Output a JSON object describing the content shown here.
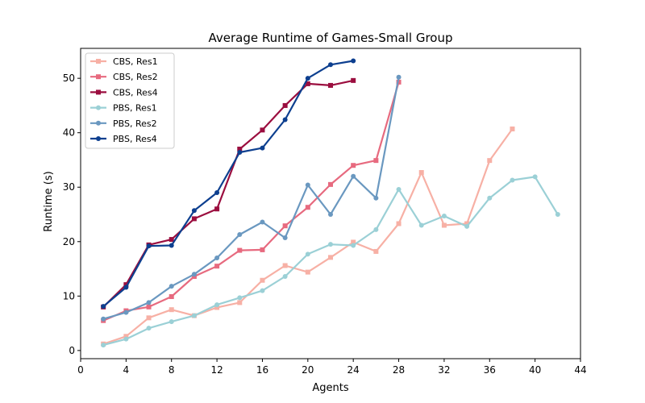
{
  "chart_data": {
    "type": "line",
    "title": "Average Runtime of Games-Small Group",
    "xlabel": "Agents",
    "ylabel": "Runtime (s)",
    "xlim": [
      0,
      44
    ],
    "ylim": [
      -1.5,
      55.5
    ],
    "xticks": [
      0,
      4,
      8,
      12,
      16,
      20,
      24,
      28,
      32,
      36,
      40,
      44
    ],
    "yticks": [
      0,
      10,
      20,
      30,
      40,
      50
    ],
    "grid": false,
    "legend_position": "top-left",
    "series": [
      {
        "name": "CBS, Res1",
        "color": "#f7b0a5",
        "marker": "square",
        "x": [
          2,
          4,
          6,
          8,
          10,
          12,
          14,
          16,
          18,
          20,
          22,
          24,
          26,
          28,
          30,
          32,
          34,
          36,
          38
        ],
        "y": [
          1.2,
          2.6,
          6.0,
          7.5,
          6.4,
          7.9,
          8.8,
          12.9,
          15.6,
          14.4,
          17.1,
          19.9,
          18.2,
          23.3,
          32.7,
          23.0,
          23.3,
          34.9,
          40.7
        ]
      },
      {
        "name": "CBS, Res2",
        "color": "#e76a7f",
        "marker": "square",
        "x": [
          2,
          4,
          6,
          8,
          10,
          12,
          14,
          16,
          18,
          20,
          22,
          24,
          26,
          28
        ],
        "y": [
          5.5,
          7.3,
          8.0,
          9.9,
          13.6,
          15.5,
          18.4,
          18.5,
          22.9,
          26.3,
          30.5,
          34.0,
          34.9,
          49.3
        ]
      },
      {
        "name": "CBS, Res4",
        "color": "#9b0e3f",
        "marker": "square",
        "x": [
          2,
          4,
          6,
          8,
          10,
          12,
          14,
          16,
          18,
          20,
          22,
          24
        ],
        "y": [
          8.0,
          12.1,
          19.4,
          20.4,
          24.2,
          26.0,
          37.0,
          40.5,
          45.0,
          49.0,
          48.7,
          49.6
        ]
      },
      {
        "name": "PBS, Res1",
        "color": "#9bd0d6",
        "marker": "circle",
        "x": [
          2,
          4,
          6,
          8,
          10,
          12,
          14,
          16,
          18,
          20,
          22,
          24,
          26,
          28,
          30,
          32,
          34,
          36,
          38,
          40,
          42
        ],
        "y": [
          1.0,
          2.1,
          4.1,
          5.3,
          6.4,
          8.4,
          9.7,
          11.0,
          13.6,
          17.7,
          19.5,
          19.3,
          22.2,
          29.6,
          23.0,
          24.7,
          22.8,
          28.0,
          31.3,
          31.9,
          25.0
        ]
      },
      {
        "name": "PBS, Res2",
        "color": "#6a98c0",
        "marker": "circle",
        "x": [
          2,
          4,
          6,
          8,
          10,
          12,
          14,
          16,
          18,
          20,
          22,
          24,
          26,
          28
        ],
        "y": [
          5.8,
          7.0,
          8.8,
          11.8,
          14.0,
          17.0,
          21.3,
          23.6,
          20.7,
          30.4,
          25.0,
          32.0,
          28.0,
          50.2
        ]
      },
      {
        "name": "PBS, Res4",
        "color": "#0d3f8f",
        "marker": "circle",
        "x": [
          2,
          4,
          6,
          8,
          10,
          12,
          14,
          16,
          18,
          20,
          22,
          24
        ],
        "y": [
          8.1,
          11.6,
          19.2,
          19.3,
          25.7,
          29.0,
          36.4,
          37.2,
          42.4,
          50.0,
          52.5,
          53.2
        ]
      }
    ]
  }
}
